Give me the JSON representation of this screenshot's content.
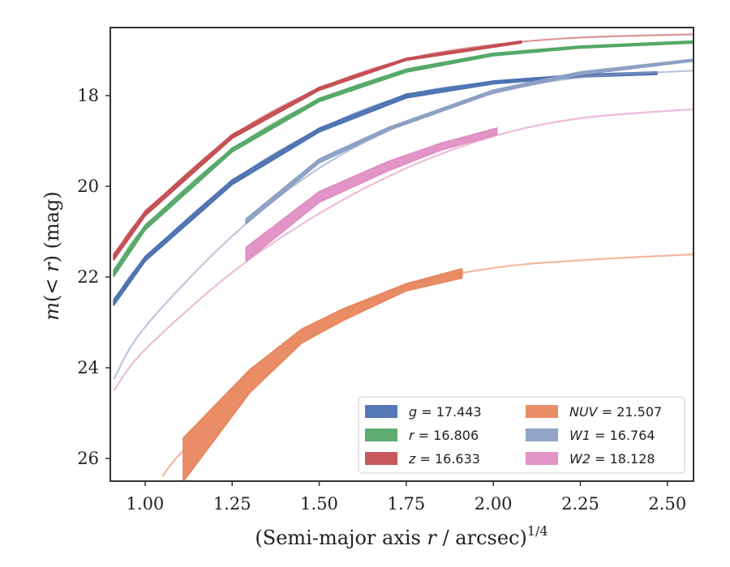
{
  "chart_data": {
    "type": "line",
    "title": "",
    "xlabel": {
      "pre": "(Semi-major axis ",
      "var": "r",
      "post": " / arcsec)",
      "sup": "1/4"
    },
    "ylabel": {
      "var1": "m",
      "paren_open": "(< ",
      "var2": "r",
      "paren_close": ") (mag)"
    },
    "xlim": [
      0.9,
      2.575
    ],
    "ylim": [
      16.5,
      26.5
    ],
    "y_inverted": true,
    "grid": false,
    "legend_position": "lower-right",
    "x_ticks": [
      "1.00",
      "1.25",
      "1.50",
      "1.75",
      "2.00",
      "2.25",
      "2.50"
    ],
    "y_ticks": [
      "18",
      "20",
      "22",
      "24",
      "26"
    ],
    "series": [
      {
        "id": "g",
        "band": "g",
        "value": "17.443",
        "color": "#4c72b0",
        "model": [
          [
            0.91,
            22.55
          ],
          [
            1.0,
            21.6
          ],
          [
            1.25,
            19.9
          ],
          [
            1.5,
            18.75
          ],
          [
            1.75,
            18.0
          ],
          [
            2.0,
            17.7
          ],
          [
            2.25,
            17.56
          ],
          [
            2.47,
            17.5
          ]
        ],
        "data_band": [
          [
            0.91,
            22.5,
            22.62
          ],
          [
            1.0,
            21.55,
            21.65
          ],
          [
            1.25,
            19.86,
            19.96
          ],
          [
            1.5,
            18.72,
            18.8
          ],
          [
            1.75,
            17.97,
            18.05
          ],
          [
            2.0,
            17.68,
            17.74
          ],
          [
            2.25,
            17.54,
            17.59
          ],
          [
            2.47,
            17.48,
            17.53
          ]
        ]
      },
      {
        "id": "r",
        "band": "r",
        "value": "16.806",
        "color": "#55a868",
        "model": [
          [
            0.91,
            21.9
          ],
          [
            1.0,
            20.9
          ],
          [
            1.25,
            19.2
          ],
          [
            1.5,
            18.1
          ],
          [
            1.75,
            17.45
          ],
          [
            2.0,
            17.1
          ],
          [
            2.25,
            16.93
          ],
          [
            2.575,
            16.82
          ]
        ],
        "data_band": [
          [
            0.91,
            21.85,
            21.98
          ],
          [
            1.0,
            20.86,
            20.96
          ],
          [
            1.25,
            19.16,
            19.24
          ],
          [
            1.5,
            18.06,
            18.13
          ],
          [
            1.75,
            17.42,
            17.48
          ],
          [
            2.0,
            17.07,
            17.12
          ],
          [
            2.25,
            16.91,
            16.95
          ],
          [
            2.575,
            16.8,
            16.84
          ]
        ]
      },
      {
        "id": "z",
        "band": "z",
        "value": "16.633",
        "color": "#c44e52",
        "model": [
          [
            0.91,
            21.55
          ],
          [
            1.0,
            20.6
          ],
          [
            1.25,
            18.9
          ],
          [
            1.5,
            17.85
          ],
          [
            1.75,
            17.2
          ],
          [
            2.0,
            16.88
          ],
          [
            2.25,
            16.72
          ],
          [
            2.575,
            16.65
          ]
        ],
        "data_band": [
          [
            0.91,
            21.5,
            21.62
          ],
          [
            1.0,
            20.55,
            20.65
          ],
          [
            1.25,
            18.86,
            18.94
          ],
          [
            1.5,
            17.82,
            17.88
          ],
          [
            1.75,
            17.18,
            17.22
          ],
          [
            2.08,
            16.8,
            16.84
          ]
        ]
      },
      {
        "id": "NUV",
        "band": "NUV",
        "value": "21.507",
        "color": "#e8875f",
        "model": [
          [
            1.05,
            26.4
          ],
          [
            1.1,
            25.9
          ],
          [
            1.3,
            24.3
          ],
          [
            1.5,
            23.05
          ],
          [
            1.75,
            22.2
          ],
          [
            2.0,
            21.8
          ],
          [
            2.25,
            21.63
          ],
          [
            2.575,
            21.5
          ]
        ],
        "data_band": [
          [
            1.11,
            25.55,
            26.5
          ],
          [
            1.3,
            24.05,
            24.55
          ],
          [
            1.45,
            23.15,
            23.45
          ],
          [
            1.57,
            22.7,
            22.95
          ],
          [
            1.75,
            22.15,
            22.3
          ],
          [
            1.91,
            21.82,
            22.02
          ]
        ]
      },
      {
        "id": "W1",
        "band": "W1",
        "value": "16.764",
        "color": "#8c9fc4",
        "model": [
          [
            0.91,
            24.25
          ],
          [
            1.0,
            23.1
          ],
          [
            1.25,
            21.1
          ],
          [
            1.5,
            19.6
          ],
          [
            1.75,
            18.6
          ],
          [
            2.0,
            17.95
          ],
          [
            2.25,
            17.6
          ],
          [
            2.575,
            17.45
          ]
        ],
        "data_band": [
          [
            1.29,
            20.72,
            20.82
          ],
          [
            1.5,
            19.4,
            19.48
          ],
          [
            1.7,
            18.7,
            18.76
          ],
          [
            2.0,
            17.88,
            17.94
          ],
          [
            2.25,
            17.48,
            17.54
          ],
          [
            2.575,
            17.2,
            17.24
          ]
        ]
      },
      {
        "id": "W2",
        "band": "W2",
        "value": "18.128",
        "color": "#e08fc3",
        "model": [
          [
            0.91,
            24.5
          ],
          [
            1.0,
            23.6
          ],
          [
            1.25,
            21.9
          ],
          [
            1.5,
            20.6
          ],
          [
            1.75,
            19.6
          ],
          [
            2.0,
            18.9
          ],
          [
            2.25,
            18.5
          ],
          [
            2.575,
            18.3
          ]
        ],
        "data_band": [
          [
            1.29,
            21.35,
            21.65
          ],
          [
            1.5,
            20.12,
            20.35
          ],
          [
            1.7,
            19.45,
            19.65
          ],
          [
            1.85,
            19.05,
            19.2
          ],
          [
            2.01,
            18.72,
            18.86
          ]
        ]
      }
    ]
  }
}
